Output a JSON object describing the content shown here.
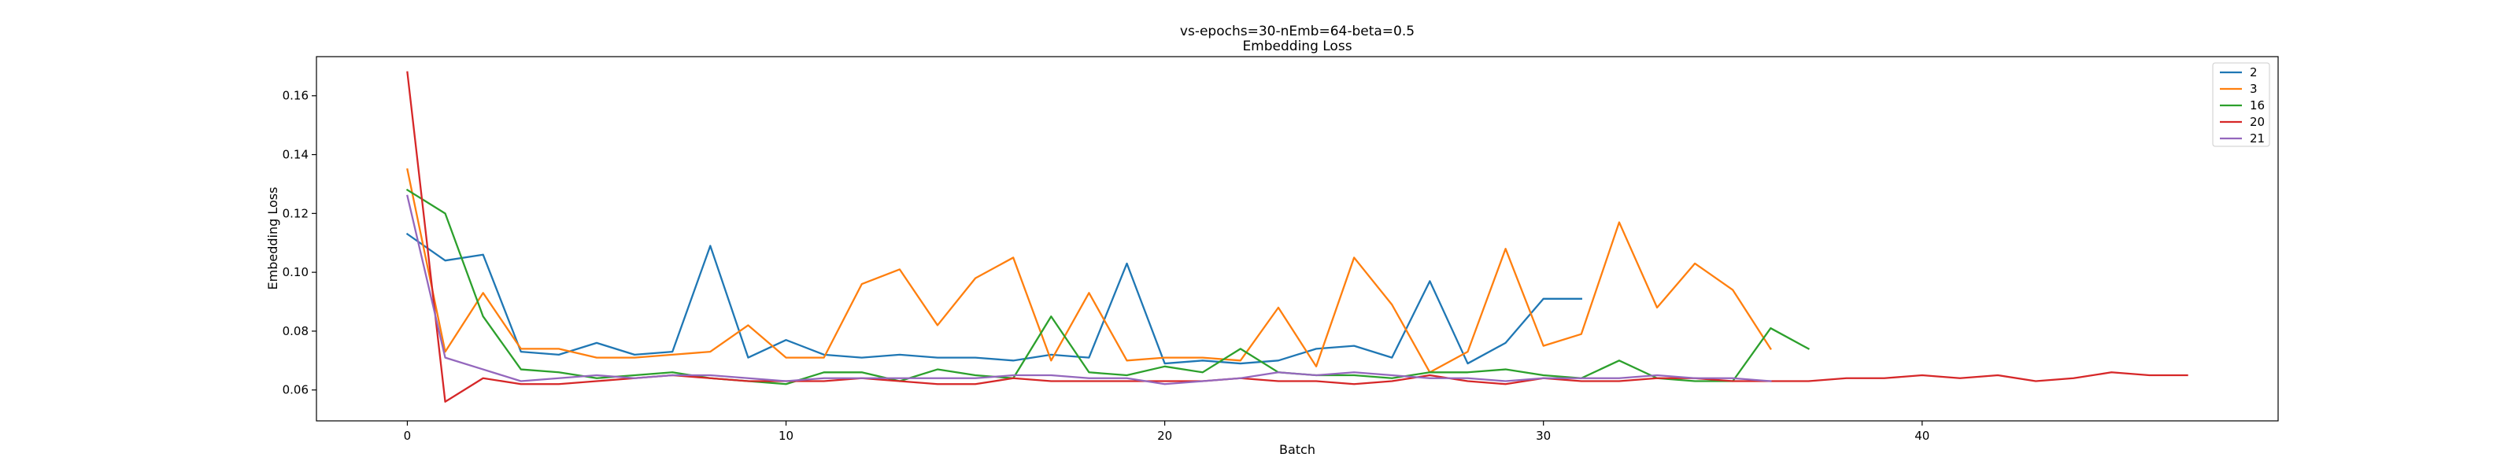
{
  "chart_data": {
    "type": "line",
    "title": "vs-epochs=30-nEmb=64-beta=0.5",
    "subtitle": "Embedding Loss",
    "xlabel": "Batch",
    "ylabel": "Embedding Loss",
    "xlim": [
      -2.4,
      49.4
    ],
    "ylim": [
      0.0495,
      0.1733
    ],
    "xticks": [
      0,
      10,
      20,
      30,
      40
    ],
    "yticks": [
      0.06,
      0.08,
      0.1,
      0.12,
      0.14,
      0.16
    ],
    "ytick_labels": [
      "0.06",
      "0.08",
      "0.10",
      "0.12",
      "0.14",
      "0.16"
    ],
    "grid": false,
    "legend_position": "top-right",
    "series": [
      {
        "name": "2",
        "color": "#1f77b4",
        "values": [
          0.113,
          0.104,
          0.106,
          0.073,
          0.072,
          0.076,
          0.072,
          0.073,
          0.109,
          0.071,
          0.077,
          0.072,
          0.071,
          0.072,
          0.071,
          0.071,
          0.07,
          0.072,
          0.071,
          0.103,
          0.069,
          0.07,
          0.069,
          0.07,
          0.074,
          0.075,
          0.071,
          0.097,
          0.069,
          0.076,
          0.091,
          0.091
        ]
      },
      {
        "name": "3",
        "color": "#ff7f0e",
        "values": [
          0.135,
          0.073,
          0.093,
          0.074,
          0.074,
          0.071,
          0.071,
          0.072,
          0.073,
          0.082,
          0.071,
          0.071,
          0.096,
          0.101,
          0.082,
          0.098,
          0.105,
          0.07,
          0.093,
          0.07,
          0.071,
          0.071,
          0.07,
          0.088,
          0.068,
          0.105,
          0.089,
          0.066,
          0.073,
          0.108,
          0.075,
          0.079,
          0.117,
          0.088,
          0.103,
          0.094,
          0.074
        ]
      },
      {
        "name": "16",
        "color": "#2ca02c",
        "values": [
          0.128,
          0.12,
          0.085,
          0.067,
          0.066,
          0.064,
          0.065,
          0.066,
          0.064,
          0.063,
          0.062,
          0.066,
          0.066,
          0.063,
          0.067,
          0.065,
          0.064,
          0.085,
          0.066,
          0.065,
          0.068,
          0.066,
          0.074,
          0.066,
          0.065,
          0.065,
          0.064,
          0.066,
          0.066,
          0.067,
          0.065,
          0.064,
          0.07,
          0.064,
          0.063,
          0.063,
          0.081,
          0.074
        ]
      },
      {
        "name": "20",
        "color": "#d62728",
        "values": [
          0.168,
          0.056,
          0.064,
          0.062,
          0.062,
          0.063,
          0.064,
          0.065,
          0.064,
          0.063,
          0.063,
          0.063,
          0.064,
          0.063,
          0.062,
          0.062,
          0.064,
          0.063,
          0.063,
          0.063,
          0.063,
          0.063,
          0.064,
          0.063,
          0.063,
          0.062,
          0.063,
          0.065,
          0.063,
          0.062,
          0.064,
          0.063,
          0.063,
          0.064,
          0.064,
          0.063,
          0.063,
          0.063,
          0.064,
          0.064,
          0.065,
          0.064,
          0.065,
          0.063,
          0.064,
          0.066,
          0.065,
          0.065
        ]
      },
      {
        "name": "21",
        "color": "#9467bd",
        "values": [
          0.126,
          0.071,
          0.067,
          0.063,
          0.064,
          0.065,
          0.064,
          0.065,
          0.065,
          0.064,
          0.063,
          0.064,
          0.064,
          0.064,
          0.064,
          0.064,
          0.065,
          0.065,
          0.064,
          0.064,
          0.062,
          0.063,
          0.064,
          0.066,
          0.065,
          0.066,
          0.065,
          0.064,
          0.064,
          0.063,
          0.064,
          0.064,
          0.064,
          0.065,
          0.064,
          0.064,
          0.063
        ]
      }
    ]
  }
}
